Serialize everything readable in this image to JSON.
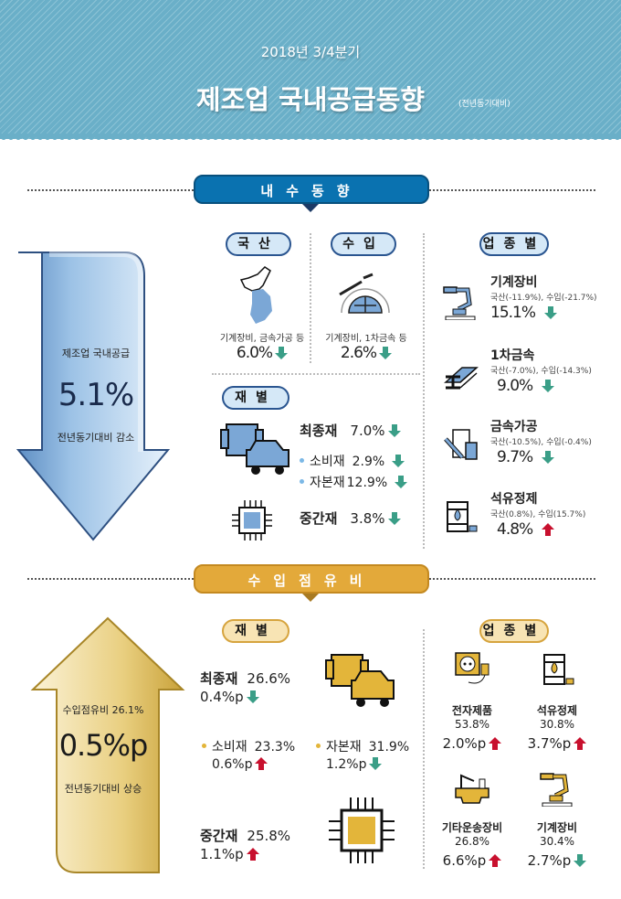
{
  "header": {
    "period": "2018년  3/4분기",
    "title": "제조업 국내공급동향",
    "note": "(전년동기대비)"
  },
  "colors": {
    "header": "#6aafc8",
    "domestic_banner": "#0a72b0",
    "import_banner": "#e3a93a",
    "down": "#3a9e87",
    "up": "#c8102e"
  },
  "domestic": {
    "banner": "내수동향",
    "summary": {
      "label": "제조업 국내공급",
      "value": "5.1%",
      "note": "전년동기대비 감소",
      "direction": "down"
    },
    "domestic_prod": {
      "pill": "국산",
      "caption": "기계장비, 금속가공 등",
      "value": "6.0%",
      "direction": "down",
      "icon": "korea-map-icon"
    },
    "imports": {
      "pill": "수입",
      "caption": "기계장비, 1차금속 등",
      "value": "2.6%",
      "direction": "down",
      "icon": "globe-plane-icon"
    },
    "by_goods": {
      "pill": "재별",
      "final": {
        "name": "최종재",
        "value": "7.0%",
        "direction": "down"
      },
      "consumer": {
        "name": "소비재",
        "value": "2.9%",
        "direction": "down"
      },
      "capital": {
        "name": "자본재",
        "value": "12.9%",
        "direction": "down"
      },
      "intermediate": {
        "name": "중간재",
        "value": "3.8%",
        "direction": "down"
      }
    },
    "by_industry": {
      "pill": "업종별",
      "items": [
        {
          "name": "기계장비",
          "detail": "국산(-11.9%), 수입(-21.7%)",
          "value": "15.1%",
          "direction": "down",
          "icon": "robot-arm-icon"
        },
        {
          "name": "1차금속",
          "detail": "국산(-7.0%), 수입(-14.3%)",
          "value": "9.0%",
          "direction": "down",
          "icon": "steel-beam-icon"
        },
        {
          "name": "금속가공",
          "detail": "국산(-10.5%), 수입(-0.4%)",
          "value": "9.7%",
          "direction": "down",
          "icon": "wrench-tools-icon"
        },
        {
          "name": "석유정제",
          "detail": "국산(0.8%), 수입(15.7%)",
          "value": "4.8%",
          "direction": "up",
          "icon": "oil-barrel-icon"
        }
      ]
    }
  },
  "import_share": {
    "banner": "수입점유비",
    "summary": {
      "label": "수입점유비 26.1%",
      "value": "0.5%p",
      "note": "전년동기대비 상승",
      "direction": "up"
    },
    "by_goods": {
      "pill": "재별",
      "final": {
        "name": "최종재",
        "share": "26.6%",
        "change": "0.4%p",
        "direction": "down"
      },
      "consumer": {
        "name": "소비재",
        "share": "23.3%",
        "change": "0.6%p",
        "direction": "up"
      },
      "capital": {
        "name": "자본재",
        "share": "31.9%",
        "change": "1.2%p",
        "direction": "down"
      },
      "intermediate": {
        "name": "중간재",
        "share": "25.8%",
        "change": "1.1%p",
        "direction": "up"
      }
    },
    "by_industry": {
      "pill": "업종별",
      "items": [
        {
          "name": "전자제품",
          "share": "53.8%",
          "change": "2.0%p",
          "direction": "up",
          "icon": "power-outlet-icon"
        },
        {
          "name": "석유정제",
          "share": "30.8%",
          "change": "3.7%p",
          "direction": "up",
          "icon": "oil-barrel-icon"
        },
        {
          "name": "기타운송장비",
          "share": "26.8%",
          "change": "6.6%p",
          "direction": "up",
          "icon": "ship-crane-icon"
        },
        {
          "name": "기계장비",
          "share": "30.4%",
          "change": "2.7%p",
          "direction": "down",
          "icon": "robot-arm-icon"
        }
      ]
    }
  }
}
